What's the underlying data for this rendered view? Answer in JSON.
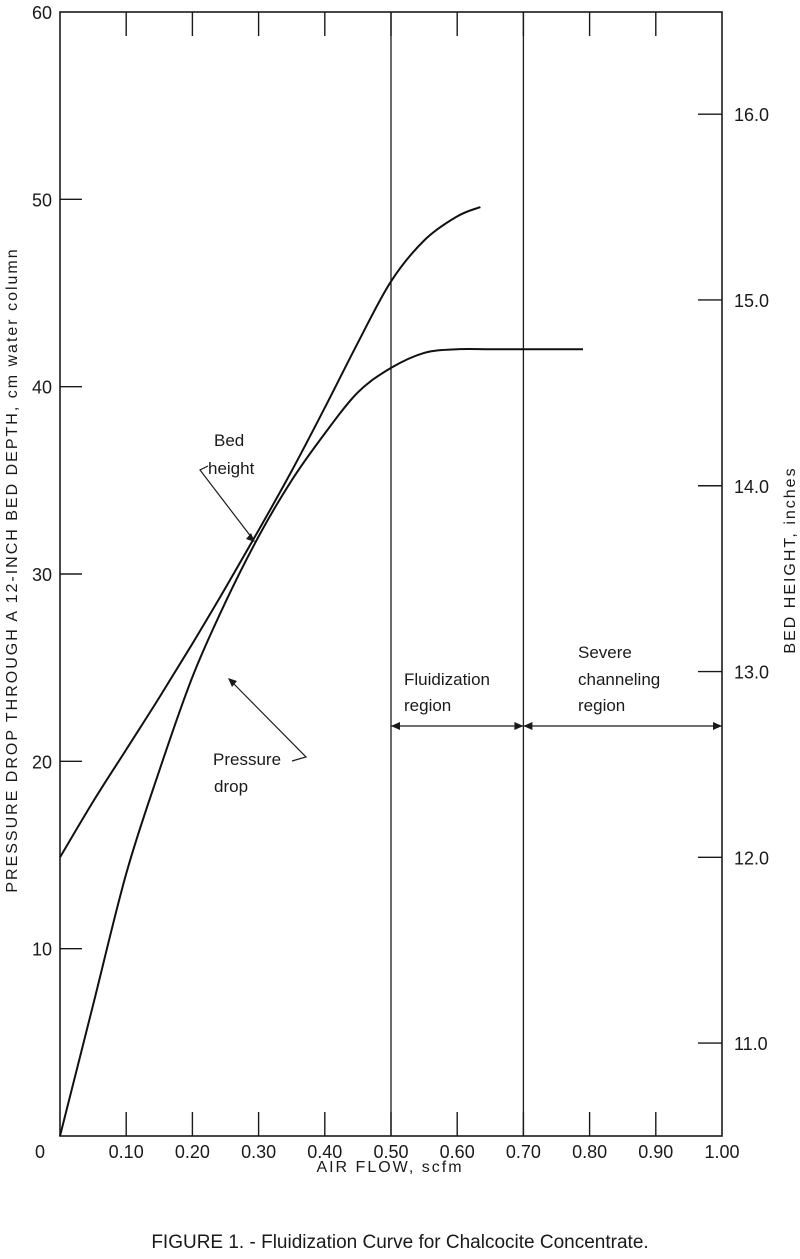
{
  "caption": "FIGURE 1. - Fluidization Curve for Chalcocite Concentrate.",
  "chart_data": {
    "type": "line",
    "title": "",
    "xlabel": "AIR FLOW, scfm",
    "ylabel_left": "PRESSURE DROP THROUGH A 12-INCH BED DEPTH, cm water column",
    "ylabel_right": "BED HEIGHT, inches",
    "xlim": [
      0,
      1.0
    ],
    "ylim_left": [
      0,
      60
    ],
    "ylim_right": [
      10.5,
      16.55
    ],
    "x_tick_labels": [
      "0",
      "0.10",
      "0.20",
      "0.30",
      "0.40",
      "0.50",
      "0.60",
      "0.70",
      "0.80",
      "0.90",
      "1.00"
    ],
    "y_left_tick_labels": [
      "10",
      "20",
      "30",
      "40",
      "50",
      "60"
    ],
    "y_right_tick_labels": [
      "11.0",
      "12.0",
      "13.0",
      "14.0",
      "15.0",
      "16.0"
    ],
    "grid": false,
    "series": [
      {
        "name": "Bed height",
        "axis": "right",
        "x": [
          0,
          0.05,
          0.1,
          0.15,
          0.2,
          0.25,
          0.3,
          0.35,
          0.4,
          0.45,
          0.5,
          0.55,
          0.6,
          0.635
        ],
        "y": [
          12.0,
          12.3,
          12.58,
          12.86,
          13.15,
          13.45,
          13.76,
          14.08,
          14.42,
          14.77,
          15.1,
          15.32,
          15.45,
          15.5
        ]
      },
      {
        "name": "Pressure drop",
        "axis": "left",
        "x": [
          0,
          0.05,
          0.1,
          0.15,
          0.2,
          0.25,
          0.3,
          0.35,
          0.4,
          0.45,
          0.5,
          0.55,
          0.6,
          0.65,
          0.7,
          0.75,
          0.79
        ],
        "y": [
          0,
          7,
          14,
          19.5,
          24.5,
          28.5,
          32,
          35,
          37.5,
          39.7,
          41,
          41.8,
          42,
          42,
          42,
          42,
          42
        ]
      }
    ],
    "regions": [
      {
        "label_line1": "Fluidization",
        "label_line2": "region",
        "x_start": 0.5,
        "x_end": 0.7
      },
      {
        "label_line1": "Severe",
        "label_line2": "channeling",
        "label_line3": "region",
        "x_start": 0.7,
        "x_end": 1.0
      }
    ],
    "annotations": [
      {
        "text_line1": "Bed",
        "text_line2": "height"
      },
      {
        "text_line1": "Pressure",
        "text_line2": "drop"
      }
    ]
  }
}
